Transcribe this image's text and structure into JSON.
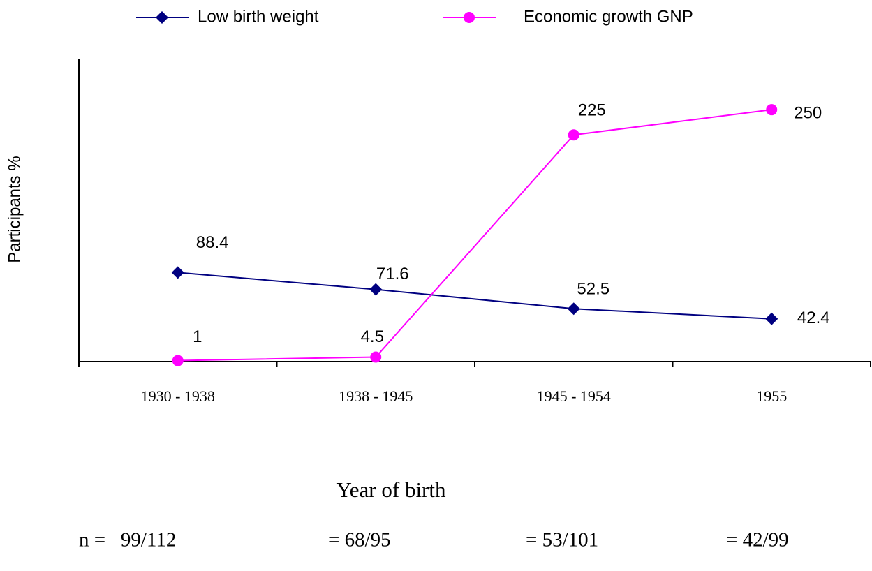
{
  "chart_data": {
    "type": "line",
    "x_label": "Year of birth",
    "y_label": "Participants %",
    "categories": [
      "1930 - 1938",
      "1938 - 1945",
      "1945 - 1954",
      "1955"
    ],
    "series": [
      {
        "name": "Low birth weight",
        "color": "#000080",
        "marker": "diamond",
        "values": [
          88.4,
          71.6,
          52.5,
          42.4
        ]
      },
      {
        "name": "Economic growth GNP",
        "color": "#ff00ff",
        "marker": "circle",
        "values": [
          1,
          4.5,
          225,
          250
        ]
      }
    ],
    "ylim": [
      0,
      300
    ],
    "annotations": [
      "n =   99/112",
      "= 68/95",
      "= 53/101",
      "= 42/99"
    ]
  }
}
